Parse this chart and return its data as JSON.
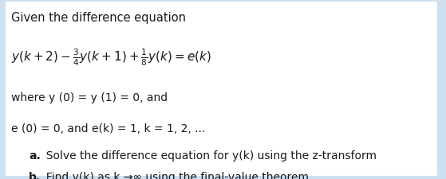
{
  "background_color": "#cce0f0",
  "box_color": "#ffffff",
  "text_color": "#1a1a1a",
  "title_fontsize": 10.5,
  "eq_fontsize": 11.0,
  "body_fontsize": 10.0,
  "items_fontsize": 10.0,
  "line1": "Given the difference equation",
  "line3": "where y (0) = y (1) = 0, and",
  "line4": "e (0) = 0, and e(k) = 1, k = 1, 2, ...",
  "line5a_bold": "a.",
  "line5a_rest": "  Solve the difference equation for y(k) using the z-transform",
  "line5b_bold": "b.",
  "line5b_rest": "  Find y(k) as k →∞ using the final-value theorem"
}
